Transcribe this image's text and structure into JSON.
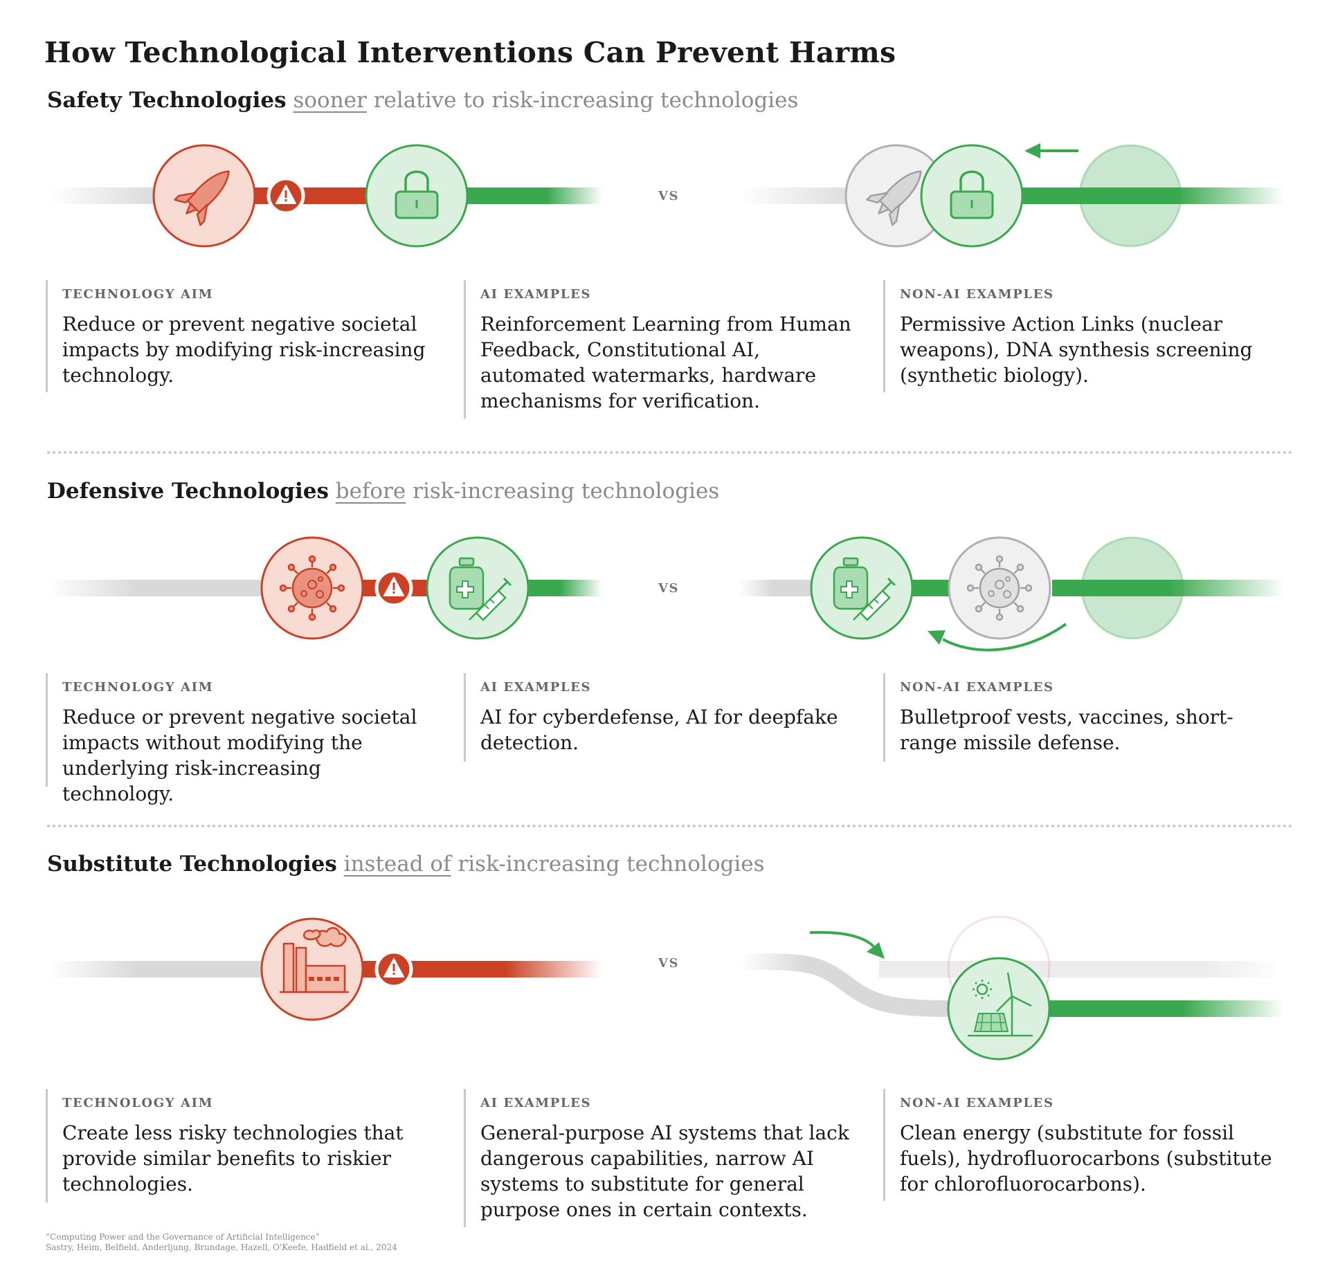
{
  "title": "How Technological Interventions Can Prevent Harms",
  "vs_label": "VS",
  "sections": [
    {
      "heading_strong": "Safety Technologies",
      "heading_modifier": "sooner",
      "heading_rest": "relative to risk-increasing technologies",
      "columns": [
        {
          "label": "TECHNOLOGY AIM",
          "body": "Reduce or prevent negative societal impacts by modifying risk-increasing technology."
        },
        {
          "label": "AI EXAMPLES",
          "body": "Reinforcement Learning from Human Feedback, Constitutional AI, automated watermarks, hardware mechanisms for verification."
        },
        {
          "label": "NON-AI EXAMPLES",
          "body": "Permissive Action Links (nuclear weapons), DNA synthesis screening (synthetic biology)."
        }
      ]
    },
    {
      "heading_strong": "Defensive Technologies",
      "heading_modifier": "before",
      "heading_rest": "risk-increasing technologies",
      "columns": [
        {
          "label": "TECHNOLOGY AIM",
          "body": "Reduce or prevent negative societal impacts without modifying the underlying risk-increasing technology."
        },
        {
          "label": "AI EXAMPLES",
          "body": "AI for cyberdefense, AI for deepfake detection."
        },
        {
          "label": "NON-AI EXAMPLES",
          "body": "Bulletproof vests, vaccines, short-range missile defense."
        }
      ]
    },
    {
      "heading_strong": "Substitute Technologies",
      "heading_modifier": "instead of",
      "heading_rest": "risk-increasing technologies",
      "columns": [
        {
          "label": "TECHNOLOGY AIM",
          "body": "Create less risky technologies that provide similar benefits to riskier technologies."
        },
        {
          "label": "AI EXAMPLES",
          "body": "General-purpose AI systems that lack dangerous capabilities, narrow AI systems to substitute for general purpose ones in certain contexts."
        },
        {
          "label": "NON-AI EXAMPLES",
          "body": "Clean energy (substitute for fossil fuels), hydrofluorocarbons (substitute for chlorofluorocarbons)."
        }
      ]
    }
  ],
  "citation": {
    "line1": "“Computing Power and the Governance of Artificial Intelligence”",
    "line2": "Sastry, Heim, Belfield, Anderljung, Brundage, Hazell, O'Keefe, Hadfield et al., 2024"
  },
  "colors": {
    "risk": "#cc4125",
    "risk_fill": "#f8dcd3",
    "safe": "#3aa84f",
    "safe_fill": "#dcf0df",
    "neutral": "#b0b0b0",
    "neutral_fill": "#f0f0f0",
    "track": "#d9d9d9"
  },
  "icons": [
    "rocket-icon",
    "lock-icon",
    "warning-icon",
    "virus-icon",
    "vaccine-icon",
    "factory-icon",
    "clean-energy-icon",
    "arrow-icon"
  ]
}
